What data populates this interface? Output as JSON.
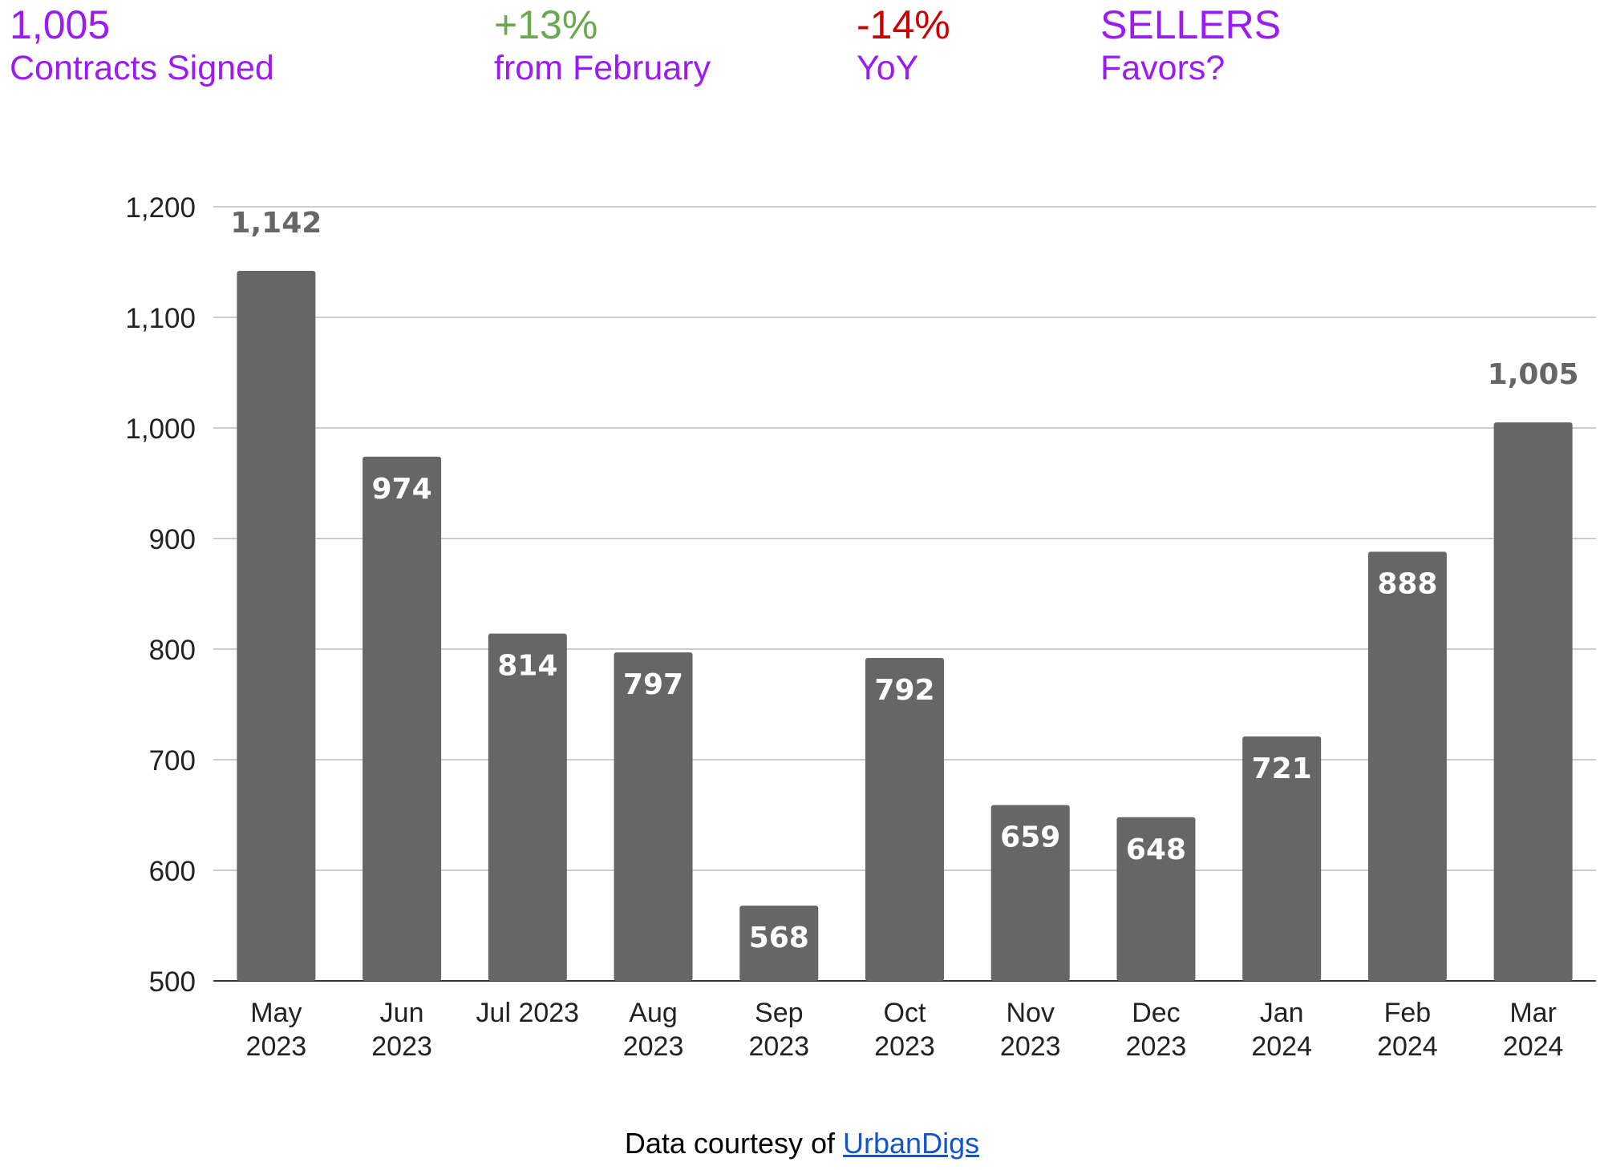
{
  "header": {
    "stats": [
      {
        "value": "1,005",
        "label": "Contracts Signed"
      },
      {
        "value": "+13%",
        "label": "from February"
      },
      {
        "value": "-14%",
        "label": "YoY"
      },
      {
        "value": "SELLERS",
        "label": "Favors?"
      }
    ]
  },
  "colors": {
    "stat_text": "#9b1bf5",
    "positive_change": "#6aa84f",
    "negative_change": "#cc0000",
    "bar": "#666666",
    "grid": "#cccccc",
    "link": "#1155cc"
  },
  "chart_data": {
    "type": "bar",
    "categories": [
      "May 2023",
      "Jun 2023",
      "Jul 2023",
      "Aug 2023",
      "Sep 2023",
      "Oct 2023",
      "Nov 2023",
      "Dec 2023",
      "Jan 2024",
      "Feb 2024",
      "Mar 2024"
    ],
    "category_labels": [
      [
        "May",
        "2023"
      ],
      [
        "Jun",
        "2023"
      ],
      [
        "Jul 2023"
      ],
      [
        "Aug",
        "2023"
      ],
      [
        "Sep",
        "2023"
      ],
      [
        "Oct",
        "2023"
      ],
      [
        "Nov",
        "2023"
      ],
      [
        "Dec",
        "2023"
      ],
      [
        "Jan",
        "2024"
      ],
      [
        "Feb",
        "2024"
      ],
      [
        "Mar",
        "2024"
      ]
    ],
    "values": [
      1142,
      974,
      814,
      797,
      568,
      792,
      659,
      648,
      721,
      888,
      1005
    ],
    "value_labels": [
      "1,142",
      "974",
      "814",
      "797",
      "568",
      "792",
      "659",
      "648",
      "721",
      "888",
      "1,005"
    ],
    "label_outside": [
      true,
      false,
      false,
      false,
      false,
      false,
      false,
      false,
      false,
      false,
      true
    ],
    "ylim": [
      500,
      1200
    ],
    "yticks": [
      500,
      600,
      700,
      800,
      900,
      1000,
      1100,
      1200
    ],
    "ytick_labels": [
      "500",
      "600",
      "700",
      "800",
      "900",
      "1,000",
      "1,100",
      "1,200"
    ],
    "grid": true,
    "legend": "none",
    "title": "",
    "xlabel": "",
    "ylabel": ""
  },
  "footer": {
    "prefix": "Data courtesy of ",
    "link_text": "UrbanDigs"
  }
}
